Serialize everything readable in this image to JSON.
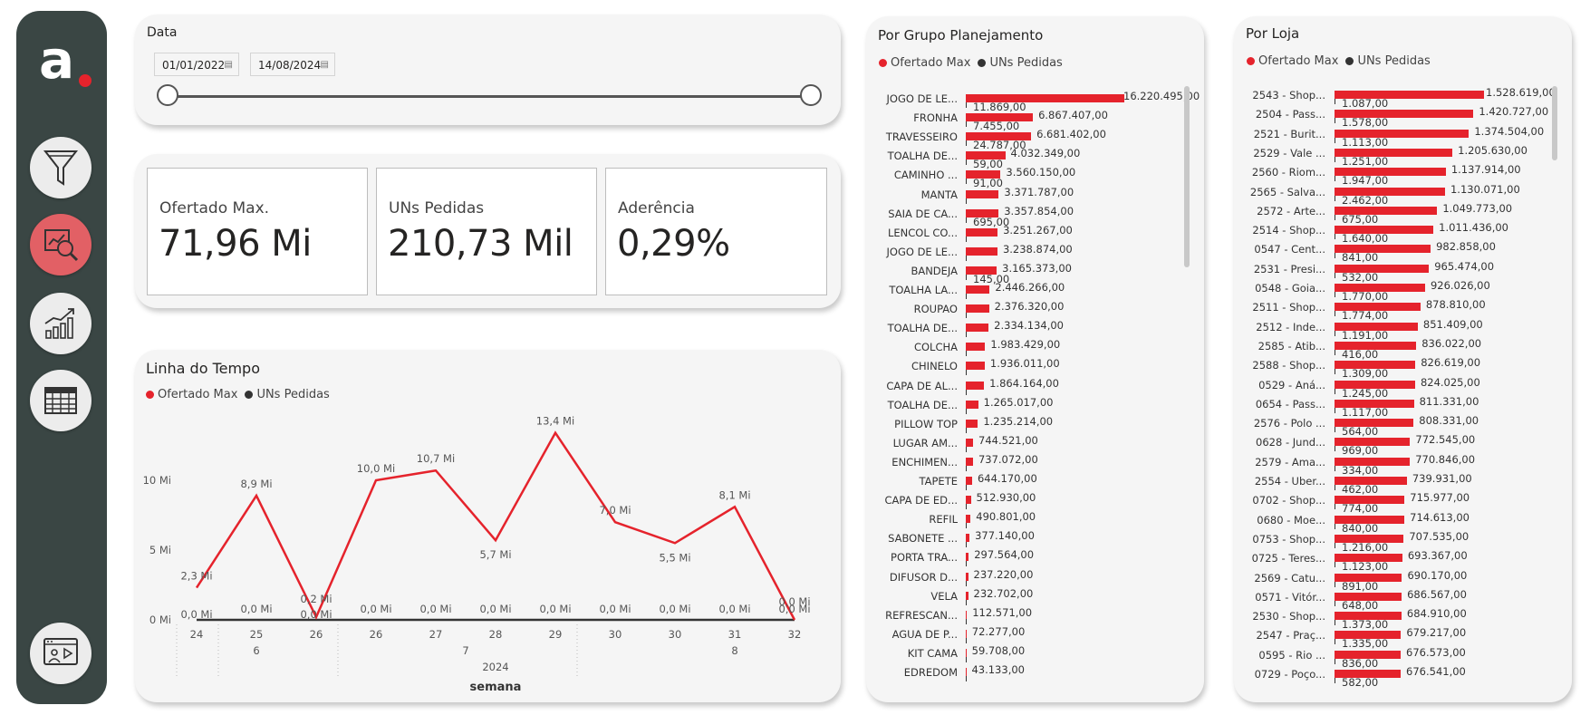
{
  "sidebar": {
    "logo_text": "a",
    "nav": [
      {
        "icon": "filter-icon",
        "active": false
      },
      {
        "icon": "analysis-icon",
        "active": true
      },
      {
        "icon": "growth-chart-icon",
        "active": false
      },
      {
        "icon": "table-icon",
        "active": false
      },
      {
        "icon": "presentation-icon",
        "active": false
      }
    ]
  },
  "date_filter": {
    "title": "Data",
    "start": "01/01/2022",
    "end": "14/08/2024"
  },
  "kpis": [
    {
      "label": "Ofertado Max.",
      "value": "71,96 Mi"
    },
    {
      "label": "UNs Pedidas",
      "value": "210,73 Mil"
    },
    {
      "label": "Aderência",
      "value": "0,29%"
    }
  ],
  "timeline": {
    "title": "Linha do Tempo",
    "legend": [
      "Ofertado Max",
      "UNs Pedidas"
    ],
    "x_axis_title": "semana",
    "year": "2024",
    "months": [
      "6",
      "7",
      "8"
    ],
    "y_ticks": [
      "0 Mi",
      "5 Mi",
      "10 Mi"
    ]
  },
  "grupo": {
    "title": "Por Grupo Planejamento",
    "legend": [
      "Ofertado Max",
      "UNs Pedidas"
    ],
    "rows": [
      {
        "label": "JOGO DE LE...",
        "ofertado": 16220495,
        "ofertado_label": "16.220.495,00",
        "pedidas_label": "11.869,00"
      },
      {
        "label": "FRONHA",
        "ofertado": 6867407,
        "ofertado_label": "6.867.407,00",
        "pedidas_label": "7.455,00"
      },
      {
        "label": "TRAVESSEIRO",
        "ofertado": 6681402,
        "ofertado_label": "6.681.402,00",
        "pedidas_label": "24.787,00"
      },
      {
        "label": "TOALHA DE...",
        "ofertado": 4032349,
        "ofertado_label": "4.032.349,00",
        "pedidas_label": "59,00"
      },
      {
        "label": "CAMINHO ...",
        "ofertado": 3560150,
        "ofertado_label": "3.560.150,00",
        "pedidas_label": "91,00"
      },
      {
        "label": "MANTA",
        "ofertado": 3371787,
        "ofertado_label": "3.371.787,00",
        "pedidas_label": ""
      },
      {
        "label": "SAIA DE CA...",
        "ofertado": 3357854,
        "ofertado_label": "3.357.854,00",
        "pedidas_label": "695,00"
      },
      {
        "label": "LENCOL CO...",
        "ofertado": 3251267,
        "ofertado_label": "3.251.267,00",
        "pedidas_label": ""
      },
      {
        "label": "JOGO DE LE...",
        "ofertado": 3238874,
        "ofertado_label": "3.238.874,00",
        "pedidas_label": ""
      },
      {
        "label": "BANDEJA",
        "ofertado": 3165373,
        "ofertado_label": "3.165.373,00",
        "pedidas_label": "145,00"
      },
      {
        "label": "TOALHA LA...",
        "ofertado": 2446266,
        "ofertado_label": "2.446.266,00",
        "pedidas_label": ""
      },
      {
        "label": "ROUPAO",
        "ofertado": 2376320,
        "ofertado_label": "2.376.320,00",
        "pedidas_label": ""
      },
      {
        "label": "TOALHA DE...",
        "ofertado": 2334134,
        "ofertado_label": "2.334.134,00",
        "pedidas_label": ""
      },
      {
        "label": "COLCHA",
        "ofertado": 1983429,
        "ofertado_label": "1.983.429,00",
        "pedidas_label": ""
      },
      {
        "label": "CHINELO",
        "ofertado": 1936011,
        "ofertado_label": "1.936.011,00",
        "pedidas_label": ""
      },
      {
        "label": "CAPA DE AL...",
        "ofertado": 1864164,
        "ofertado_label": "1.864.164,00",
        "pedidas_label": ""
      },
      {
        "label": "TOALHA DE...",
        "ofertado": 1265017,
        "ofertado_label": "1.265.017,00",
        "pedidas_label": ""
      },
      {
        "label": "PILLOW TOP",
        "ofertado": 1235214,
        "ofertado_label": "1.235.214,00",
        "pedidas_label": ""
      },
      {
        "label": "LUGAR AM...",
        "ofertado": 744521,
        "ofertado_label": "744.521,00",
        "pedidas_label": ""
      },
      {
        "label": "ENCHIMEN...",
        "ofertado": 737072,
        "ofertado_label": "737.072,00",
        "pedidas_label": ""
      },
      {
        "label": "TAPETE",
        "ofertado": 644170,
        "ofertado_label": "644.170,00",
        "pedidas_label": ""
      },
      {
        "label": "CAPA DE ED...",
        "ofertado": 512930,
        "ofertado_label": "512.930,00",
        "pedidas_label": ""
      },
      {
        "label": "REFIL",
        "ofertado": 490801,
        "ofertado_label": "490.801,00",
        "pedidas_label": ""
      },
      {
        "label": "SABONETE ...",
        "ofertado": 377140,
        "ofertado_label": "377.140,00",
        "pedidas_label": ""
      },
      {
        "label": "PORTA TRA...",
        "ofertado": 297564,
        "ofertado_label": "297.564,00",
        "pedidas_label": ""
      },
      {
        "label": "DIFUSOR D...",
        "ofertado": 237220,
        "ofertado_label": "237.220,00",
        "pedidas_label": ""
      },
      {
        "label": "VELA",
        "ofertado": 232702,
        "ofertado_label": "232.702,00",
        "pedidas_label": ""
      },
      {
        "label": "REFRESCAN...",
        "ofertado": 112571,
        "ofertado_label": "112.571,00",
        "pedidas_label": ""
      },
      {
        "label": "AGUA DE P...",
        "ofertado": 72277,
        "ofertado_label": "72.277,00",
        "pedidas_label": ""
      },
      {
        "label": "KIT CAMA",
        "ofertado": 59708,
        "ofertado_label": "59.708,00",
        "pedidas_label": ""
      },
      {
        "label": "EDREDOM",
        "ofertado": 43133,
        "ofertado_label": "43.133,00",
        "pedidas_label": ""
      }
    ]
  },
  "loja": {
    "title": "Por Loja",
    "legend": [
      "Ofertado Max",
      "UNs Pedidas"
    ],
    "rows": [
      {
        "label": "2543 - Shop...",
        "ofertado": 1528619,
        "ofertado_label": "1.528.619,00",
        "pedidas_label": "1.087,00"
      },
      {
        "label": "2504 - Pass...",
        "ofertado": 1420727,
        "ofertado_label": "1.420.727,00",
        "pedidas_label": "1.578,00"
      },
      {
        "label": "2521 - Burit...",
        "ofertado": 1374504,
        "ofertado_label": "1.374.504,00",
        "pedidas_label": "1.113,00"
      },
      {
        "label": "2529 - Vale ...",
        "ofertado": 1205630,
        "ofertado_label": "1.205.630,00",
        "pedidas_label": "1.251,00"
      },
      {
        "label": "2560 - Riom...",
        "ofertado": 1137914,
        "ofertado_label": "1.137.914,00",
        "pedidas_label": "1.947,00"
      },
      {
        "label": "2565 - Salva...",
        "ofertado": 1130071,
        "ofertado_label": "1.130.071,00",
        "pedidas_label": "2.462,00"
      },
      {
        "label": "2572 - Arte...",
        "ofertado": 1049773,
        "ofertado_label": "1.049.773,00",
        "pedidas_label": "675,00"
      },
      {
        "label": "2514 - Shop...",
        "ofertado": 1011436,
        "ofertado_label": "1.011.436,00",
        "pedidas_label": "1.640,00"
      },
      {
        "label": "0547 - Cent...",
        "ofertado": 982858,
        "ofertado_label": "982.858,00",
        "pedidas_label": "841,00"
      },
      {
        "label": "2531 - Presi...",
        "ofertado": 965474,
        "ofertado_label": "965.474,00",
        "pedidas_label": "532,00"
      },
      {
        "label": "0548 - Goia...",
        "ofertado": 926026,
        "ofertado_label": "926.026,00",
        "pedidas_label": "1.770,00"
      },
      {
        "label": "2511 - Shop...",
        "ofertado": 878810,
        "ofertado_label": "878.810,00",
        "pedidas_label": "1.774,00"
      },
      {
        "label": "2512 - Inde...",
        "ofertado": 851409,
        "ofertado_label": "851.409,00",
        "pedidas_label": "1.191,00"
      },
      {
        "label": "2585 - Atib...",
        "ofertado": 836022,
        "ofertado_label": "836.022,00",
        "pedidas_label": "416,00"
      },
      {
        "label": "2588 - Shop...",
        "ofertado": 826619,
        "ofertado_label": "826.619,00",
        "pedidas_label": "1.309,00"
      },
      {
        "label": "0529 - Aná...",
        "ofertado": 824025,
        "ofertado_label": "824.025,00",
        "pedidas_label": "1.245,00"
      },
      {
        "label": "0654 - Pass...",
        "ofertado": 811331,
        "ofertado_label": "811.331,00",
        "pedidas_label": "1.117,00"
      },
      {
        "label": "2576 - Polo ...",
        "ofertado": 808331,
        "ofertado_label": "808.331,00",
        "pedidas_label": "564,00"
      },
      {
        "label": "0628 - Jund...",
        "ofertado": 772545,
        "ofertado_label": "772.545,00",
        "pedidas_label": "969,00"
      },
      {
        "label": "2579 - Ama...",
        "ofertado": 770846,
        "ofertado_label": "770.846,00",
        "pedidas_label": "334,00"
      },
      {
        "label": "2554 - Uber...",
        "ofertado": 739931,
        "ofertado_label": "739.931,00",
        "pedidas_label": "462,00"
      },
      {
        "label": "0702 - Shop...",
        "ofertado": 715977,
        "ofertado_label": "715.977,00",
        "pedidas_label": "774,00"
      },
      {
        "label": "0680 - Moe...",
        "ofertado": 714613,
        "ofertado_label": "714.613,00",
        "pedidas_label": "840,00"
      },
      {
        "label": "0753 - Shop...",
        "ofertado": 707535,
        "ofertado_label": "707.535,00",
        "pedidas_label": "1.216,00"
      },
      {
        "label": "0725 - Teres...",
        "ofertado": 693367,
        "ofertado_label": "693.367,00",
        "pedidas_label": "1.123,00"
      },
      {
        "label": "2569 - Catu...",
        "ofertado": 690170,
        "ofertado_label": "690.170,00",
        "pedidas_label": "891,00"
      },
      {
        "label": "0571 - Vitór...",
        "ofertado": 686567,
        "ofertado_label": "686.567,00",
        "pedidas_label": "648,00"
      },
      {
        "label": "2530 - Shop...",
        "ofertado": 684910,
        "ofertado_label": "684.910,00",
        "pedidas_label": "1.373,00"
      },
      {
        "label": "2547 - Praç...",
        "ofertado": 679217,
        "ofertado_label": "679.217,00",
        "pedidas_label": "1.335,00"
      },
      {
        "label": "0595 - Rio ...",
        "ofertado": 676573,
        "ofertado_label": "676.573,00",
        "pedidas_label": "836,00"
      },
      {
        "label": "0729 - Poço...",
        "ofertado": 676541,
        "ofertado_label": "676.541,00",
        "pedidas_label": "582,00"
      }
    ]
  },
  "colors": {
    "ofertado": "#e5232c",
    "pedidas": "#333333",
    "sidebar": "#3a4644"
  },
  "chart_data": {
    "type": "line",
    "title": "Linha do Tempo",
    "xlabel": "semana",
    "categories": [
      "24",
      "25",
      "26",
      "26",
      "27",
      "28",
      "29",
      "30",
      "30",
      "31",
      "32"
    ],
    "ylim": [
      0,
      15
    ],
    "series": [
      {
        "name": "Ofertado Max",
        "values": [
          2.3,
          8.9,
          0.2,
          10.0,
          10.7,
          5.7,
          13.4,
          7.0,
          5.5,
          8.1,
          0.0
        ],
        "labels": [
          "2,3 Mi",
          "8,9 Mi",
          "0,2 Mi",
          "10,0 Mi",
          "10,7 Mi",
          "5,7 Mi",
          "13,4 Mi",
          "7,0 Mi",
          "5,5 Mi",
          "8,1 Mi",
          "0,0 Mi"
        ]
      },
      {
        "name": "UNs Pedidas",
        "values": [
          0.0,
          0.0,
          0.0,
          0.0,
          0.0,
          0.0,
          0.0,
          0.0,
          0.0,
          0.0,
          0.0
        ],
        "labels": [
          "0,0 Mi",
          "0,0 Mi",
          "0,0 Mi",
          "0,0 Mi",
          "0,0 Mi",
          "0,0 Mi",
          "0,0 Mi",
          "0,0 Mi",
          "0,0 Mi",
          "0,0 Mi",
          "0,0 Mi"
        ]
      }
    ]
  }
}
